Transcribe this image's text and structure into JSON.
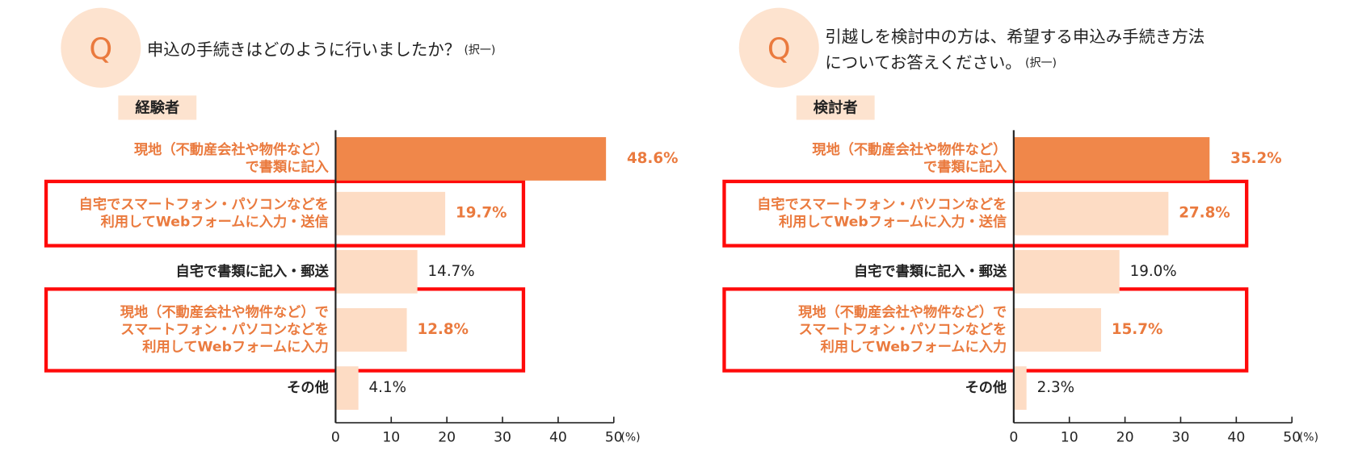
{
  "chart_data": [
    {
      "type": "bar",
      "orientation": "horizontal",
      "icon": "Q",
      "question": [
        "申込の手続きはどのように行いましたか？"
      ],
      "note": "(択一)",
      "group_label": "経験者",
      "categories": [
        [
          "現地（不動産会社や物件など）",
          "で書類に記入"
        ],
        [
          "自宅でスマートフォン・パソコンなどを",
          "利用してWebフォームに入力・送信"
        ],
        [
          "自宅で書類に記入・郵送"
        ],
        [
          "現地（不動産会社や物件など）で",
          "スマートフォン・パソコンなどを",
          "利用してWebフォームに入力"
        ],
        [
          "その他"
        ]
      ],
      "values": [
        48.6,
        19.7,
        14.7,
        12.8,
        4.1
      ],
      "value_labels": [
        "48.6%",
        "19.7%",
        "14.7%",
        "12.8%",
        "4.1%"
      ],
      "emphasis": [
        true,
        true,
        false,
        true,
        false
      ],
      "highlight": [
        1,
        3
      ],
      "colors": [
        "#f0874a",
        "#fddcc4",
        "#fddcc4",
        "#fddcc4",
        "#fddcc4"
      ],
      "xlim": [
        0,
        50
      ],
      "xticks": [
        0,
        10,
        20,
        30,
        40,
        50
      ],
      "x_unit": "(%)"
    },
    {
      "type": "bar",
      "orientation": "horizontal",
      "icon": "Q",
      "question": [
        "引越しを検討中の方は、希望する申込み手続き方法",
        "についてお答えください。"
      ],
      "note": "(択一)",
      "group_label": "検討者",
      "categories": [
        [
          "現地（不動産会社や物件など）",
          "で書類に記入"
        ],
        [
          "自宅でスマートフォン・パソコンなどを",
          "利用してWebフォームに入力・送信"
        ],
        [
          "自宅で書類に記入・郵送"
        ],
        [
          "現地（不動産会社や物件など）で",
          "スマートフォン・パソコンなどを",
          "利用してWebフォームに入力"
        ],
        [
          "その他"
        ]
      ],
      "values": [
        35.2,
        27.8,
        19.0,
        15.7,
        2.3
      ],
      "value_labels": [
        "35.2%",
        "27.8%",
        "19.0%",
        "15.7%",
        "2.3%"
      ],
      "emphasis": [
        true,
        true,
        false,
        true,
        false
      ],
      "highlight": [
        1,
        3
      ],
      "colors": [
        "#f0874a",
        "#fddcc4",
        "#fddcc4",
        "#fddcc4",
        "#fddcc4"
      ],
      "xlim": [
        0,
        50
      ],
      "xticks": [
        0,
        10,
        20,
        30,
        40,
        50
      ],
      "x_unit": "(%)"
    }
  ]
}
